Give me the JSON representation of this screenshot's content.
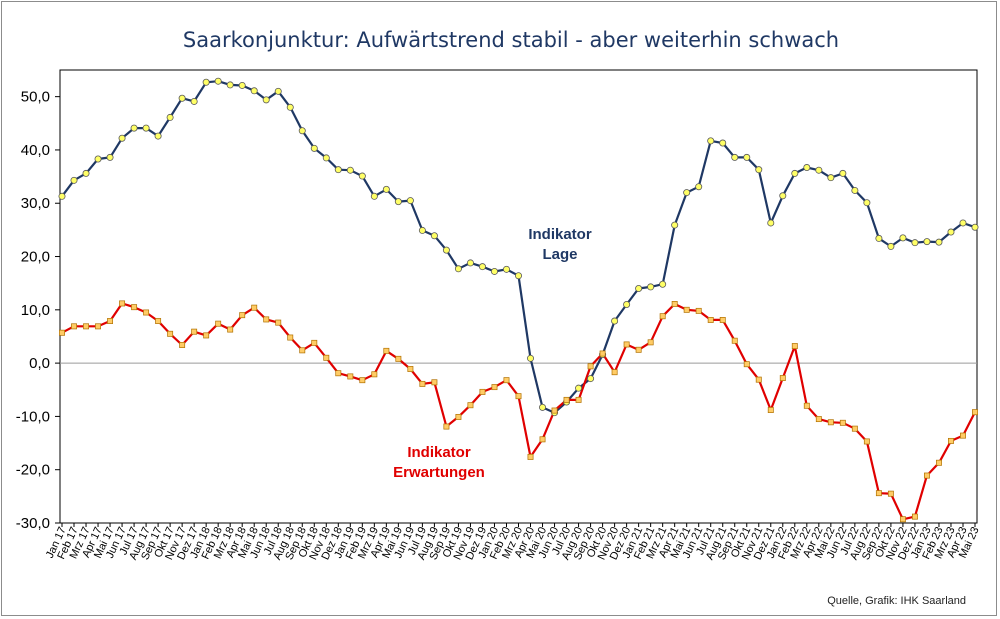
{
  "chart_data": {
    "type": "line",
    "title": "Saarkonjunktur: Aufwärtstrend stabil - aber weiterhin schwach",
    "source": "Quelle, Grafik: IHK Saarland",
    "ylim": [
      -30,
      55
    ],
    "yticks": [
      "50,0",
      "40,0",
      "30,0",
      "20,0",
      "10,0",
      "0,0",
      "-10,0",
      "-20,0",
      "-30,0"
    ],
    "ytick_values": [
      50,
      40,
      30,
      20,
      10,
      0,
      -10,
      -20,
      -30
    ],
    "grid": false,
    "zero_line": true,
    "categories": [
      "Jan 17",
      "Feb 17",
      "Mrz 17",
      "Apr 17",
      "Mai 17",
      "Jun 17",
      "Jul 17",
      "Aug 17",
      "Sep 17",
      "Okt 17",
      "Nov 17",
      "Dez 17",
      "Jan 18",
      "Feb 18",
      "Mrz 18",
      "Apr 18",
      "Mai 18",
      "Jun 18",
      "Jul 18",
      "Aug 18",
      "Sep 18",
      "Okt 18",
      "Nov 18",
      "Dez 18",
      "Jan 19",
      "Feb 19",
      "Mrz 19",
      "Apr 19",
      "Mai 19",
      "Jun 19",
      "Jul 19",
      "Aug 19",
      "Sep 19",
      "Okt 19",
      "Nov 19",
      "Dez 19",
      "Jan 20",
      "Feb 20",
      "Mrz 20",
      "Apr 20",
      "Mai 20",
      "Jun 20",
      "Jul 20",
      "Aug 20",
      "Sep 20",
      "Okt 20",
      "Nov 20",
      "Dez 20",
      "Jan 21",
      "Feb 21",
      "Mrz 21",
      "Apr 21",
      "Mai 21",
      "Jun 21",
      "Jul 21",
      "Aug 21",
      "Sep 21",
      "Okt 21",
      "Nov 21",
      "Dez 21",
      "Jan 22",
      "Feb 22",
      "Mrz 22",
      "Apr 22",
      "Mai 22",
      "Jun 22",
      "Jul 22",
      "Aug 22",
      "Sep 22",
      "Okt 22",
      "Nov 22",
      "Dez 22",
      "Jan 23",
      "Feb 23",
      "Mrz 23",
      "Apr 23",
      "Mai 23"
    ],
    "series": [
      {
        "name": "Indikator Lage",
        "label_lines": [
          "Indikator",
          "Lage"
        ],
        "color": "#1f3864",
        "marker": "circle",
        "marker_color": "#ffff66",
        "values": [
          31.3,
          34.3,
          35.6,
          38.3,
          38.6,
          42.2,
          44.1,
          44.1,
          42.6,
          46.1,
          49.7,
          49.1,
          52.7,
          52.9,
          52.2,
          52.1,
          51.1,
          49.4,
          51.0,
          48.0,
          43.6,
          40.3,
          38.5,
          36.3,
          36.2,
          35.1,
          31.3,
          32.6,
          30.3,
          30.5,
          24.9,
          23.9,
          21.2,
          17.7,
          18.8,
          18.1,
          17.2,
          17.6,
          16.4,
          0.9,
          -8.3,
          -9.3,
          -7.3,
          -4.7,
          -2.9,
          1.6,
          7.9,
          11.0,
          14.0,
          14.3,
          14.8,
          25.9,
          32.0,
          33.1,
          41.7,
          41.3,
          38.6,
          38.6,
          36.3,
          26.3,
          31.4,
          35.6,
          36.7,
          36.2,
          34.8,
          35.6,
          32.4,
          30.1,
          23.4,
          21.9,
          23.5,
          22.6,
          22.8,
          22.7,
          24.6,
          26.3,
          25.5
        ]
      },
      {
        "name": "Indikator Erwartungen",
        "label_lines": [
          "Indikator",
          "Erwartungen"
        ],
        "color": "#e00000",
        "marker": "square",
        "marker_color": "#ffcc66",
        "values": [
          5.7,
          6.9,
          6.9,
          6.9,
          7.9,
          11.2,
          10.5,
          9.5,
          7.9,
          5.5,
          3.4,
          5.9,
          5.2,
          7.4,
          6.3,
          9.0,
          10.4,
          8.2,
          7.6,
          4.8,
          2.4,
          3.8,
          1.0,
          -1.9,
          -2.5,
          -3.2,
          -2.1,
          2.3,
          0.8,
          -1.1,
          -3.9,
          -3.6,
          -11.9,
          -10.1,
          -7.9,
          -5.4,
          -4.5,
          -3.2,
          -6.2,
          -17.6,
          -14.3,
          -8.9,
          -6.9,
          -6.9,
          -0.6,
          1.8,
          -1.7,
          3.5,
          2.5,
          3.9,
          8.8,
          11.1,
          10.0,
          9.8,
          8.1,
          8.1,
          4.2,
          -0.2,
          -3.1,
          -8.8,
          -2.8,
          3.2,
          -8.0,
          -10.5,
          -11.1,
          -11.2,
          -12.3,
          -14.7,
          -24.4,
          -24.5,
          -29.3,
          -28.8,
          -21.1,
          -18.7,
          -14.6,
          -13.6,
          -9.2
        ]
      }
    ]
  }
}
